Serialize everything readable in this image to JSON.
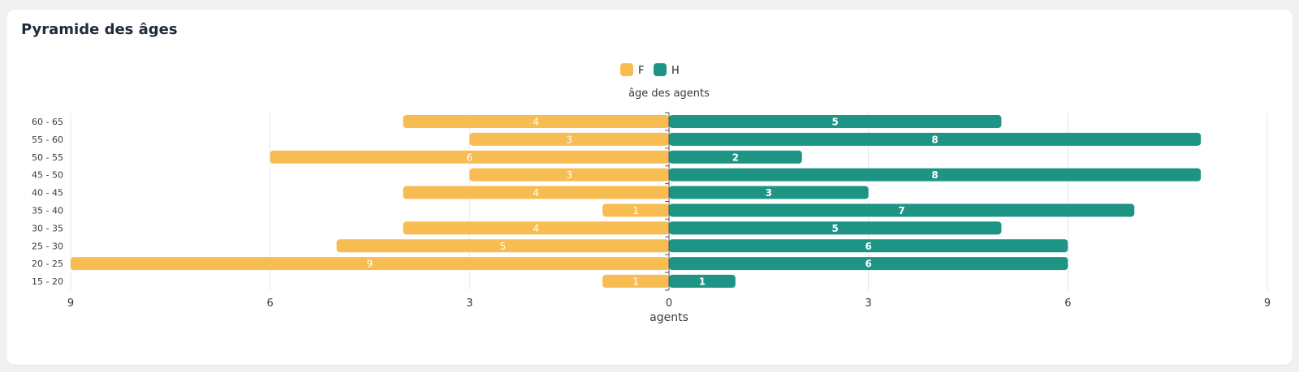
{
  "card": {
    "title": "Pyramide des âges"
  },
  "chart_data": {
    "type": "bar",
    "orientation": "horizontal",
    "title": "âge des agents",
    "xlabel": "agents",
    "ylabel": "",
    "xlim": [
      -9,
      9
    ],
    "x_ticks": [
      -9,
      -6,
      -3,
      0,
      3,
      6,
      9
    ],
    "x_tick_labels": [
      "9",
      "6",
      "3",
      "0",
      "3",
      "6",
      "9"
    ],
    "categories": [
      "60 - 65",
      "55 - 60",
      "50 - 55",
      "45 - 50",
      "40 - 45",
      "35 - 40",
      "30 - 35",
      "25 - 30",
      "20 - 25",
      "15 - 20"
    ],
    "series": [
      {
        "name": "F",
        "color": "#f8bd52",
        "direction": "left",
        "values": [
          4,
          3,
          6,
          3,
          4,
          1,
          4,
          5,
          9,
          1
        ]
      },
      {
        "name": "H",
        "color": "#1e9485",
        "direction": "right",
        "values": [
          5,
          8,
          2,
          8,
          3,
          7,
          5,
          6,
          6,
          1
        ]
      }
    ],
    "legend": {
      "position": "top-center"
    },
    "grid": true,
    "data_labels": true
  }
}
